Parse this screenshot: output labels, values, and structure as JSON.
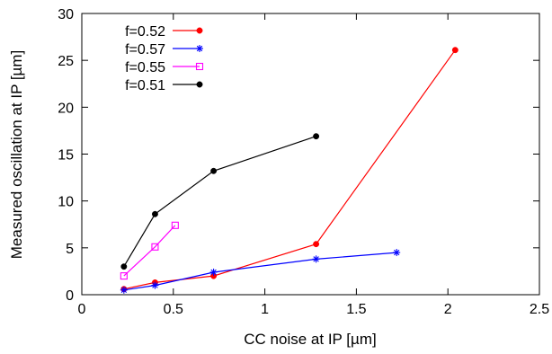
{
  "chart_data": {
    "type": "line",
    "xlabel": "CC noise at IP [µm]",
    "ylabel": "Measured oscillation at IP [µm]",
    "xlim": [
      0,
      2.5
    ],
    "ylim": [
      0,
      30
    ],
    "xticks": [
      "0",
      "0.5",
      "1",
      "1.5",
      "2",
      "2.5"
    ],
    "yticks": [
      "0",
      "5",
      "10",
      "15",
      "20",
      "25",
      "30"
    ],
    "grid": false,
    "legend_position": "top-left",
    "series": [
      {
        "name": "f=0.52",
        "color": "#ff0000",
        "marker": "filled-circle",
        "x": [
          0.23,
          0.4,
          0.72,
          1.28,
          2.04
        ],
        "y": [
          0.6,
          1.3,
          2.0,
          5.4,
          26.1
        ]
      },
      {
        "name": "f=0.57",
        "color": "#0000ff",
        "marker": "star",
        "x": [
          0.23,
          0.4,
          0.72,
          1.28,
          1.72
        ],
        "y": [
          0.5,
          1.0,
          2.4,
          3.8,
          4.5
        ]
      },
      {
        "name": "f=0.55",
        "color": "#ff00ff",
        "marker": "open-square",
        "x": [
          0.23,
          0.4,
          0.51
        ],
        "y": [
          2.0,
          5.1,
          7.4
        ]
      },
      {
        "name": "f=0.51",
        "color": "#000000",
        "marker": "filled-circle",
        "x": [
          0.23,
          0.4,
          0.72,
          1.28
        ],
        "y": [
          3.0,
          8.6,
          13.2,
          16.9
        ]
      }
    ]
  }
}
